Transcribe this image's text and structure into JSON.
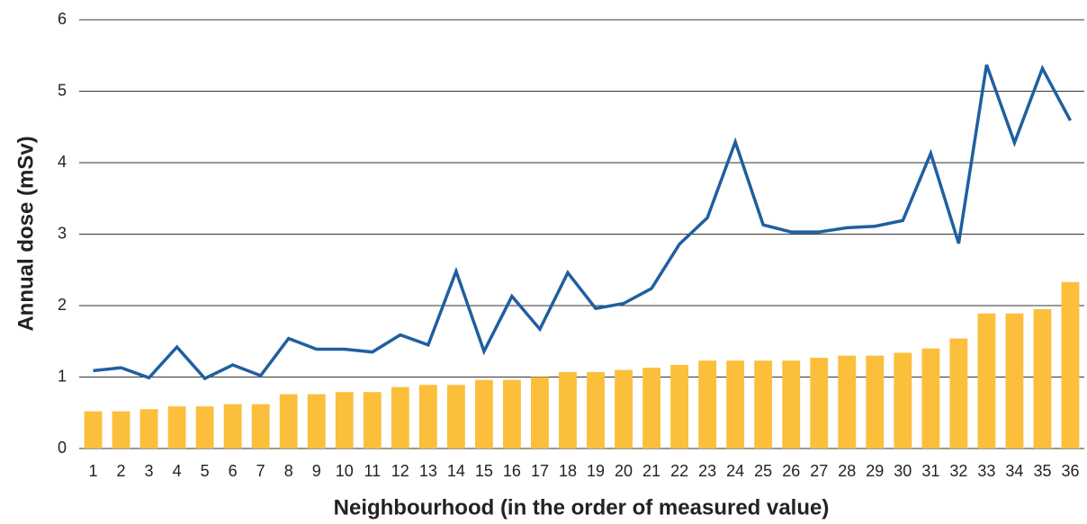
{
  "chart_data": {
    "type": "bar-line",
    "xlabel": "Neighbourhood (in the order of measured value)",
    "ylabel": "Annual dose (mSv)",
    "categories": [
      "1",
      "2",
      "3",
      "4",
      "5",
      "6",
      "7",
      "8",
      "9",
      "10",
      "11",
      "12",
      "13",
      "14",
      "15",
      "16",
      "17",
      "18",
      "19",
      "20",
      "21",
      "22",
      "23",
      "24",
      "25",
      "26",
      "27",
      "28",
      "29",
      "30",
      "31",
      "32",
      "33",
      "34",
      "35",
      "36"
    ],
    "series": [
      {
        "type": "bar",
        "color": "#fbbf3c",
        "values": [
          0.52,
          0.52,
          0.55,
          0.59,
          0.59,
          0.62,
          0.62,
          0.76,
          0.76,
          0.79,
          0.79,
          0.86,
          0.89,
          0.89,
          0.96,
          0.96,
          1.0,
          1.07,
          1.07,
          1.1,
          1.13,
          1.17,
          1.23,
          1.23,
          1.23,
          1.23,
          1.27,
          1.3,
          1.3,
          1.34,
          1.4,
          1.54,
          1.89,
          1.89,
          1.95,
          2.33
        ]
      },
      {
        "type": "line",
        "color": "#1f5fa0",
        "values": [
          1.09,
          1.13,
          0.99,
          1.42,
          0.98,
          1.17,
          1.02,
          1.54,
          1.39,
          1.39,
          1.35,
          1.59,
          1.45,
          2.48,
          1.36,
          2.13,
          1.67,
          2.46,
          1.96,
          2.03,
          2.24,
          2.86,
          3.23,
          4.29,
          3.13,
          3.03,
          3.03,
          3.09,
          3.11,
          3.19,
          4.13,
          2.87,
          5.37,
          4.28,
          5.32,
          4.59
        ]
      }
    ],
    "ylim": [
      0,
      6
    ],
    "yticks": [
      0,
      1,
      2,
      3,
      4,
      5,
      6
    ],
    "grid": true
  }
}
